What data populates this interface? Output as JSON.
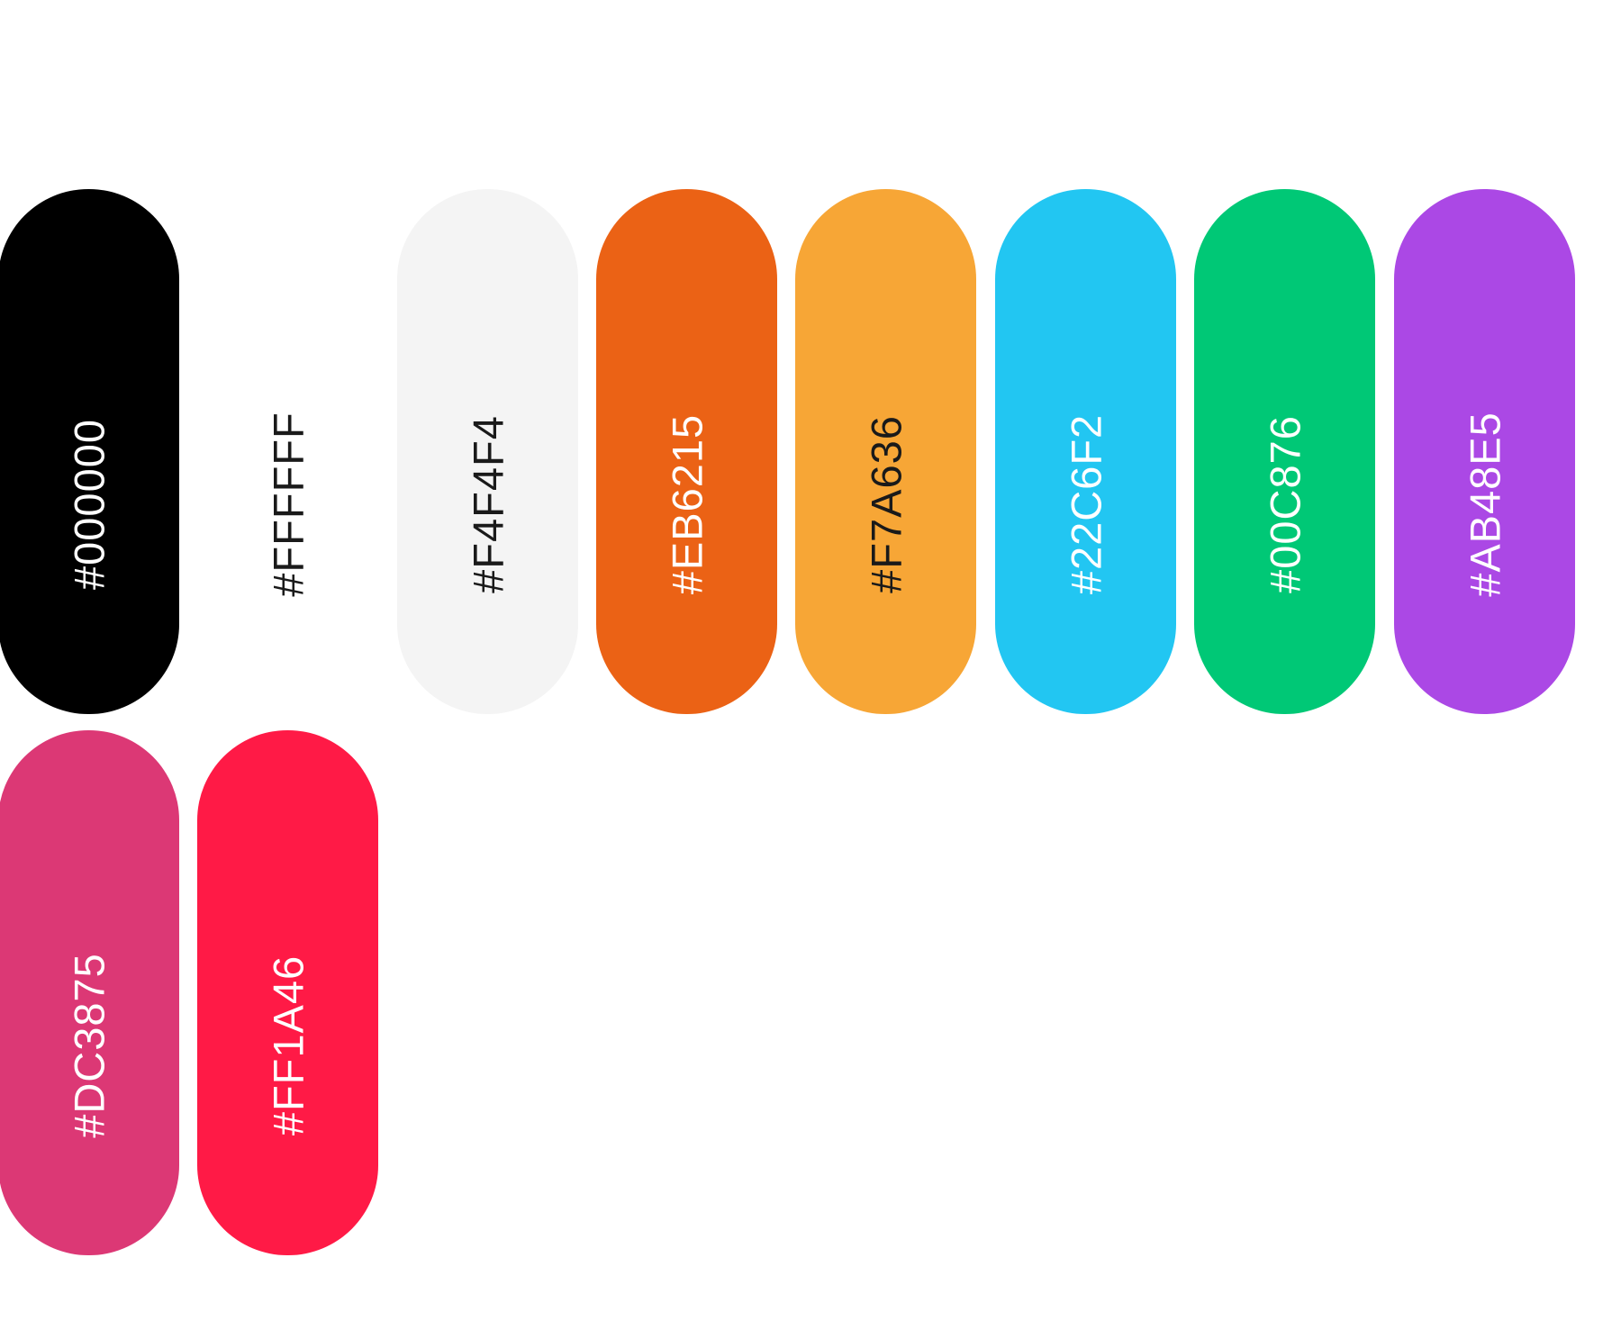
{
  "swatches": [
    {
      "label": "#000000",
      "color": "#000000",
      "text_color": "#FFFFFF"
    },
    {
      "label": "#FFFFFF",
      "color": "#FFFFFF",
      "text_color": "#1A1A1A"
    },
    {
      "label": "#F4F4F4",
      "color": "#F4F4F4",
      "text_color": "#1A1A1A"
    },
    {
      "label": "#EB6215",
      "color": "#EB6215",
      "text_color": "#FFFFFF"
    },
    {
      "label": "#F7A636",
      "color": "#F7A636",
      "text_color": "#1A1A1A"
    },
    {
      "label": "#22C6F2",
      "color": "#22C6F2",
      "text_color": "#FFFFFF"
    },
    {
      "label": "#00C876",
      "color": "#00C876",
      "text_color": "#FFFFFF"
    },
    {
      "label": "#AB48E5",
      "color": "#AB48E5",
      "text_color": "#FFFFFF"
    },
    {
      "label": "#DC3875",
      "color": "#DC3875",
      "text_color": "#FFFFFF"
    },
    {
      "label": "#FF1A46",
      "color": "#FF1A46",
      "text_color": "#FFFFFF"
    }
  ]
}
